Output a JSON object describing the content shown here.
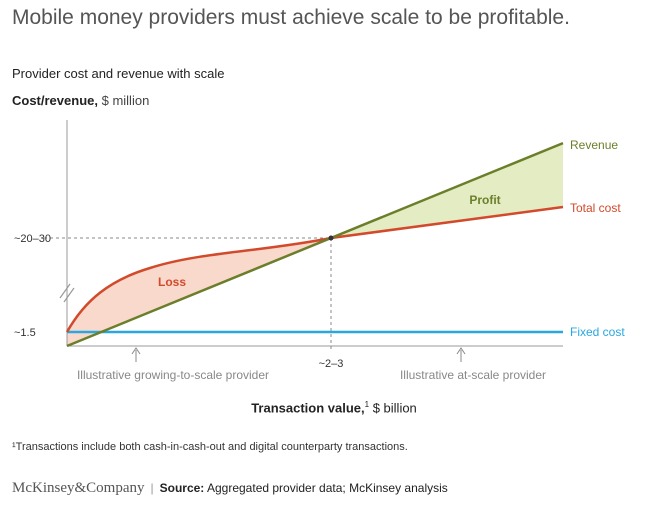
{
  "header": {
    "title": "Mobile money providers must achieve scale to be profitable.",
    "subtitle": "Provider cost and revenue with scale"
  },
  "chart_data": {
    "type": "line",
    "title": "Provider cost and revenue with scale",
    "ylabel_bold": "Cost/revenue,",
    "ylabel_unit": "$ million",
    "xlabel_bold": "Transaction value,",
    "xlabel_sup": "1",
    "xlabel_unit": "$ billion",
    "y_ticks": [
      "~20–30",
      "~1.5"
    ],
    "x_ticks": [
      "~2–3"
    ],
    "series": [
      {
        "name": "Revenue",
        "color": "#6b7f2a"
      },
      {
        "name": "Total cost",
        "color": "#d24a2b"
      },
      {
        "name": "Fixed cost",
        "color": "#29a8df"
      }
    ],
    "annotations": {
      "profit": "Profit",
      "loss": "Loss",
      "growing": "Illustrative growing-to-scale provider",
      "at_scale": "Illustrative at-scale provider"
    },
    "colors": {
      "profit_fill": "#e4ecc4",
      "loss_fill": "#f9d9cc",
      "axis": "#999999",
      "guide": "#888888"
    }
  },
  "footnote": "¹Transactions include both cash-in-cash-out and digital counterparty transactions.",
  "footer": {
    "logo": "McKinsey&Company",
    "separator": "|",
    "source_label": "Source:",
    "source_text": "Aggregated provider data; McKinsey analysis"
  }
}
